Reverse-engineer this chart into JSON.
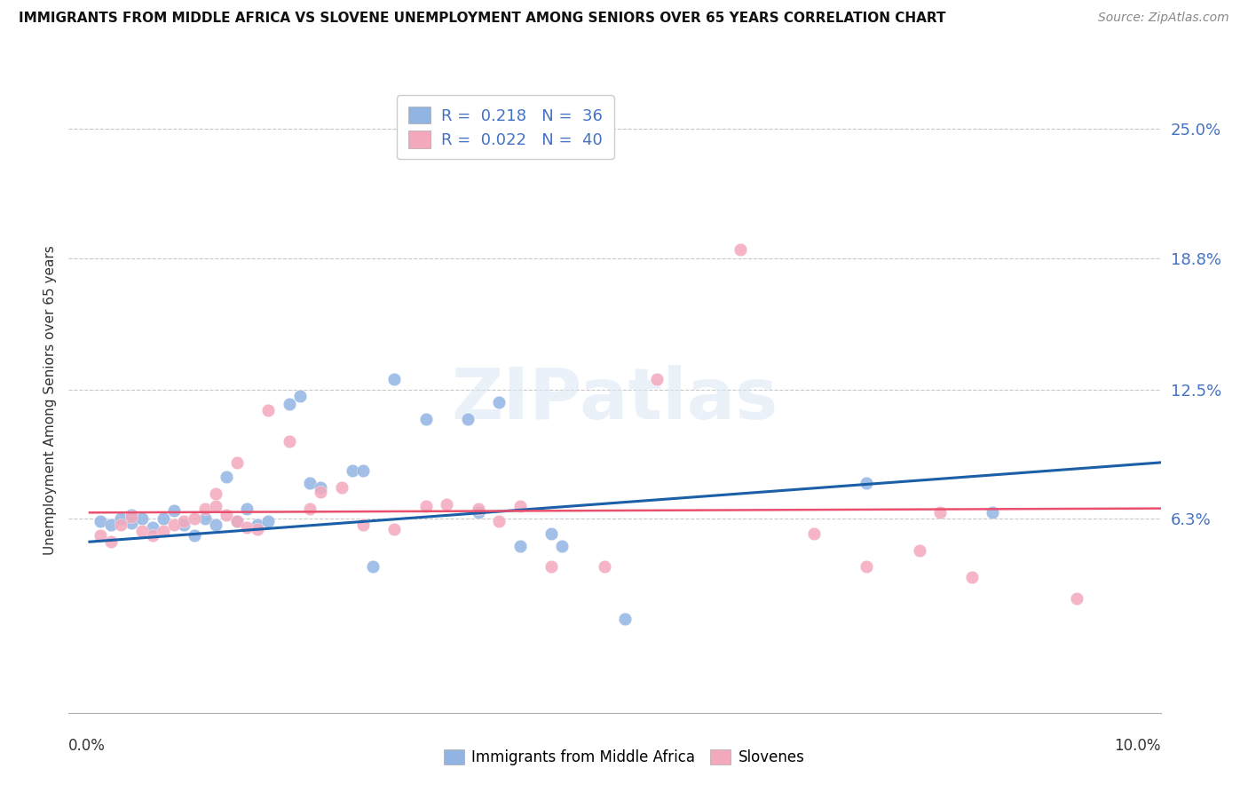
{
  "title": "IMMIGRANTS FROM MIDDLE AFRICA VS SLOVENE UNEMPLOYMENT AMONG SENIORS OVER 65 YEARS CORRELATION CHART",
  "source": "Source: ZipAtlas.com",
  "ylabel": "Unemployment Among Seniors over 65 years",
  "ytick_positions": [
    0.063,
    0.125,
    0.188,
    0.25
  ],
  "ytick_labels": [
    "6.3%",
    "12.5%",
    "18.8%",
    "25.0%"
  ],
  "xlim": [
    -0.002,
    0.102
  ],
  "ylim": [
    -0.03,
    0.27
  ],
  "R_blue": 0.218,
  "N_blue": 36,
  "R_pink": 0.022,
  "N_pink": 40,
  "blue_scatter_color": "#92b4e3",
  "pink_scatter_color": "#f4a8bc",
  "blue_line_color": "#1a5fa8",
  "pink_line_color": "#e8506e",
  "legend_label_blue": "Immigrants from Middle Africa",
  "legend_label_pink": "Slovenes",
  "blue_line_start_x": 0.0,
  "blue_line_start_y": 0.052,
  "blue_line_end_x": 0.102,
  "blue_line_end_y": 0.09,
  "pink_line_start_x": 0.0,
  "pink_line_start_y": 0.066,
  "pink_line_end_x": 0.102,
  "pink_line_end_y": 0.068,
  "blue_scatter": [
    [
      0.001,
      0.062
    ],
    [
      0.002,
      0.06
    ],
    [
      0.003,
      0.063
    ],
    [
      0.004,
      0.061
    ],
    [
      0.004,
      0.065
    ],
    [
      0.005,
      0.063
    ],
    [
      0.006,
      0.059
    ],
    [
      0.007,
      0.063
    ],
    [
      0.008,
      0.067
    ],
    [
      0.009,
      0.06
    ],
    [
      0.01,
      0.055
    ],
    [
      0.011,
      0.063
    ],
    [
      0.012,
      0.06
    ],
    [
      0.013,
      0.083
    ],
    [
      0.014,
      0.062
    ],
    [
      0.015,
      0.068
    ],
    [
      0.016,
      0.06
    ],
    [
      0.017,
      0.062
    ],
    [
      0.019,
      0.118
    ],
    [
      0.02,
      0.122
    ],
    [
      0.021,
      0.08
    ],
    [
      0.022,
      0.078
    ],
    [
      0.025,
      0.086
    ],
    [
      0.026,
      0.086
    ],
    [
      0.027,
      0.04
    ],
    [
      0.029,
      0.13
    ],
    [
      0.032,
      0.111
    ],
    [
      0.036,
      0.111
    ],
    [
      0.037,
      0.066
    ],
    [
      0.039,
      0.119
    ],
    [
      0.041,
      0.05
    ],
    [
      0.044,
      0.056
    ],
    [
      0.045,
      0.05
    ],
    [
      0.051,
      0.015
    ],
    [
      0.086,
      0.066
    ],
    [
      0.074,
      0.08
    ]
  ],
  "pink_scatter": [
    [
      0.001,
      0.055
    ],
    [
      0.002,
      0.052
    ],
    [
      0.003,
      0.06
    ],
    [
      0.004,
      0.064
    ],
    [
      0.005,
      0.057
    ],
    [
      0.006,
      0.055
    ],
    [
      0.007,
      0.057
    ],
    [
      0.008,
      0.06
    ],
    [
      0.009,
      0.062
    ],
    [
      0.01,
      0.063
    ],
    [
      0.011,
      0.068
    ],
    [
      0.012,
      0.075
    ],
    [
      0.012,
      0.069
    ],
    [
      0.013,
      0.065
    ],
    [
      0.014,
      0.062
    ],
    [
      0.014,
      0.09
    ],
    [
      0.015,
      0.059
    ],
    [
      0.016,
      0.058
    ],
    [
      0.017,
      0.115
    ],
    [
      0.019,
      0.1
    ],
    [
      0.021,
      0.068
    ],
    [
      0.022,
      0.076
    ],
    [
      0.024,
      0.078
    ],
    [
      0.026,
      0.06
    ],
    [
      0.029,
      0.058
    ],
    [
      0.032,
      0.069
    ],
    [
      0.034,
      0.07
    ],
    [
      0.037,
      0.068
    ],
    [
      0.039,
      0.062
    ],
    [
      0.041,
      0.069
    ],
    [
      0.044,
      0.04
    ],
    [
      0.049,
      0.04
    ],
    [
      0.054,
      0.13
    ],
    [
      0.062,
      0.192
    ],
    [
      0.069,
      0.056
    ],
    [
      0.074,
      0.04
    ],
    [
      0.079,
      0.048
    ],
    [
      0.081,
      0.066
    ],
    [
      0.084,
      0.035
    ],
    [
      0.094,
      0.025
    ]
  ],
  "figsize": [
    14.06,
    8.92
  ],
  "dpi": 100
}
